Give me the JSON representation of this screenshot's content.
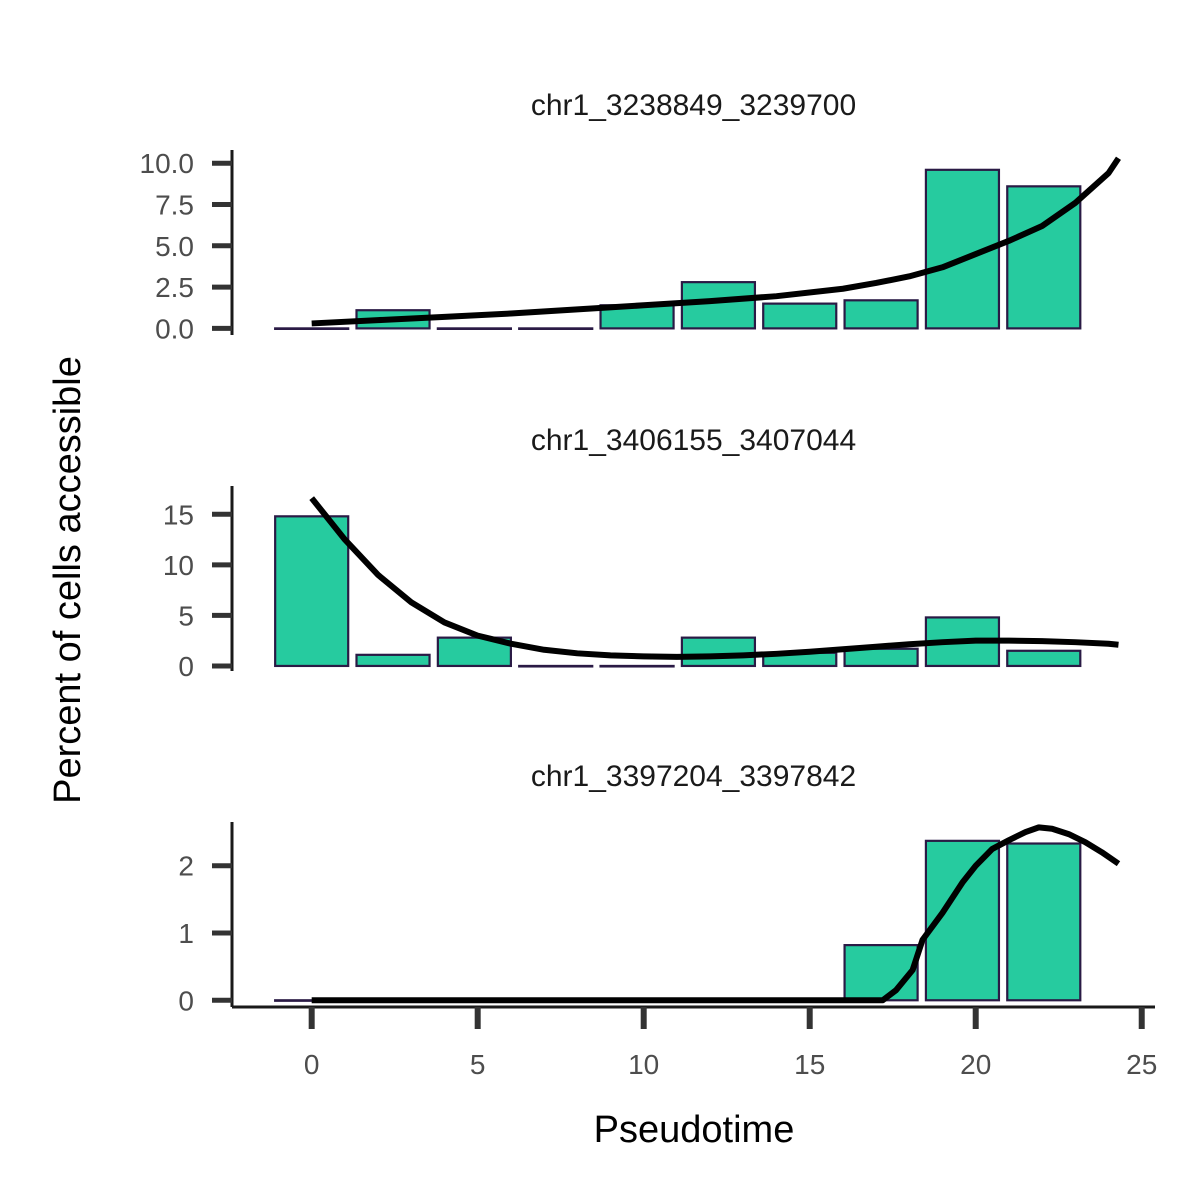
{
  "chart_data": {
    "type": "bar",
    "xlabel": "Pseudotime",
    "ylabel": "Percent of cells accessible",
    "bar_fill": "#26CB9F",
    "bar_stroke": "#2A1A45",
    "line_color": "#000000",
    "x_ticks": [
      0,
      5,
      10,
      15,
      20,
      25
    ],
    "xlim": [
      -2.4,
      25.4
    ],
    "bar_width": 2.2,
    "facets": [
      {
        "title": "chr1_3238849_3239700",
        "ylim": [
          -0.4,
          10.8
        ],
        "y_ticks": [
          0.0,
          2.5,
          5.0,
          7.5,
          10.0
        ],
        "y_tick_labels": [
          "0.0",
          "2.5",
          "5.0",
          "7.5",
          "10.0"
        ],
        "bins_x": [
          0.0,
          2.45,
          4.9,
          7.35,
          9.8,
          12.25,
          14.7,
          17.15,
          19.6,
          22.05
        ],
        "bar_values": [
          0.0,
          1.1,
          0.0,
          0.0,
          1.4,
          2.8,
          1.5,
          1.7,
          9.6,
          8.6
        ],
        "fit_x": [
          0,
          2,
          4,
          6,
          8,
          10,
          12,
          14,
          16,
          17,
          18,
          19,
          20,
          21,
          22,
          23,
          24,
          24.3
        ],
        "fit_y": [
          0.3,
          0.5,
          0.7,
          0.9,
          1.15,
          1.4,
          1.65,
          1.95,
          2.4,
          2.75,
          3.15,
          3.7,
          4.5,
          5.3,
          6.2,
          7.6,
          9.4,
          10.3
        ]
      },
      {
        "title": "chr1_3406155_3407044",
        "ylim": [
          -0.5,
          17.8
        ],
        "y_ticks": [
          0,
          5,
          10,
          15
        ],
        "y_tick_labels": [
          "0",
          "5",
          "10",
          "15"
        ],
        "bins_x": [
          0.0,
          2.45,
          4.9,
          7.35,
          9.8,
          12.25,
          14.7,
          17.15,
          19.6,
          22.05
        ],
        "bar_values": [
          14.8,
          1.1,
          2.8,
          0.0,
          0.0,
          2.8,
          1.3,
          1.7,
          4.8,
          1.5
        ],
        "fit_x": [
          0,
          1,
          2,
          3,
          4,
          5,
          6,
          7,
          8,
          9,
          10,
          11,
          12,
          13,
          14,
          15,
          16,
          17,
          18,
          19,
          20,
          21,
          22,
          23,
          24,
          24.3
        ],
        "fit_y": [
          16.6,
          12.5,
          9.0,
          6.3,
          4.3,
          3.0,
          2.2,
          1.6,
          1.25,
          1.05,
          0.95,
          0.9,
          0.95,
          1.05,
          1.2,
          1.4,
          1.65,
          1.9,
          2.15,
          2.35,
          2.5,
          2.5,
          2.45,
          2.35,
          2.2,
          2.1
        ]
      },
      {
        "title": "chr1_3397204_3397842",
        "ylim": [
          -0.1,
          2.65
        ],
        "y_ticks": [
          0,
          1,
          2
        ],
        "y_tick_labels": [
          "0",
          "1",
          "2"
        ],
        "bins_x": [
          0.0,
          2.45,
          4.9,
          7.35,
          9.8,
          12.25,
          14.7,
          17.15,
          19.6,
          22.05
        ],
        "bar_values": [
          0.0,
          0.0,
          0.0,
          0.0,
          0.0,
          0.0,
          0.0,
          0.82,
          2.37,
          2.33
        ],
        "fit_x": [
          0,
          2,
          4,
          6,
          8,
          10,
          12,
          14,
          16,
          17.2,
          17.6,
          18.1,
          18.4,
          19,
          19.6,
          20,
          20.5,
          21,
          21.5,
          21.9,
          22.3,
          22.8,
          23.3,
          23.8,
          24.3
        ],
        "fit_y": [
          0,
          0,
          0,
          0,
          0,
          0,
          0,
          0,
          0,
          0,
          0.15,
          0.45,
          0.9,
          1.3,
          1.75,
          2.0,
          2.25,
          2.38,
          2.5,
          2.57,
          2.55,
          2.47,
          2.35,
          2.2,
          2.03
        ]
      }
    ]
  }
}
